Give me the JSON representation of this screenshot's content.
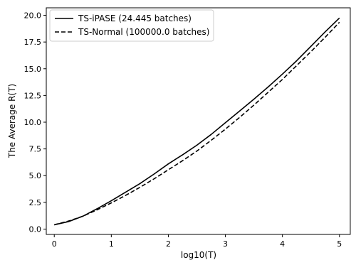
{
  "chart_data": {
    "type": "line",
    "title": "",
    "xlabel": "log10(T)",
    "ylabel": "The Average R(T)",
    "xlim": [
      -0.14,
      5.19
    ],
    "ylim": [
      -0.5,
      20.7
    ],
    "xticks": [
      0,
      1,
      2,
      3,
      4,
      5
    ],
    "yticks": [
      0.0,
      2.5,
      5.0,
      7.5,
      10.0,
      12.5,
      15.0,
      17.5,
      20.0
    ],
    "xtick_labels": [
      "0",
      "1",
      "2",
      "3",
      "4",
      "5"
    ],
    "ytick_labels": [
      "0.0",
      "2.5",
      "5.0",
      "7.5",
      "10.0",
      "12.5",
      "15.0",
      "17.5",
      "20.0"
    ],
    "grid": false,
    "legend_position": "top-left",
    "series": [
      {
        "name": "TS-iPASE (24.445 batches)",
        "color": "#000000",
        "line_style": "solid",
        "x": [
          0,
          0.25,
          0.5,
          0.75,
          1.0,
          1.25,
          1.5,
          1.75,
          2.0,
          2.25,
          2.5,
          2.75,
          3.0,
          3.25,
          3.5,
          3.75,
          4.0,
          4.25,
          4.5,
          4.75,
          5.0
        ],
        "y": [
          0.4,
          0.7,
          1.2,
          1.9,
          2.65,
          3.45,
          4.25,
          5.15,
          6.1,
          6.95,
          7.85,
          8.85,
          9.95,
          11.05,
          12.15,
          13.3,
          14.5,
          15.75,
          17.1,
          18.45,
          19.75
        ]
      },
      {
        "name": "TS-Normal (100000.0 batches)",
        "color": "#000000",
        "line_style": "dashed",
        "x": [
          0,
          0.25,
          0.5,
          0.75,
          1.0,
          1.25,
          1.5,
          1.75,
          2.0,
          2.25,
          2.5,
          2.75,
          3.0,
          3.25,
          3.5,
          3.75,
          4.0,
          4.25,
          4.5,
          4.75,
          5.0
        ],
        "y": [
          0.4,
          0.75,
          1.2,
          1.8,
          2.45,
          3.15,
          3.9,
          4.7,
          5.55,
          6.4,
          7.3,
          8.3,
          9.35,
          10.45,
          11.6,
          12.8,
          14.0,
          15.3,
          16.6,
          17.95,
          19.35
        ]
      }
    ]
  }
}
